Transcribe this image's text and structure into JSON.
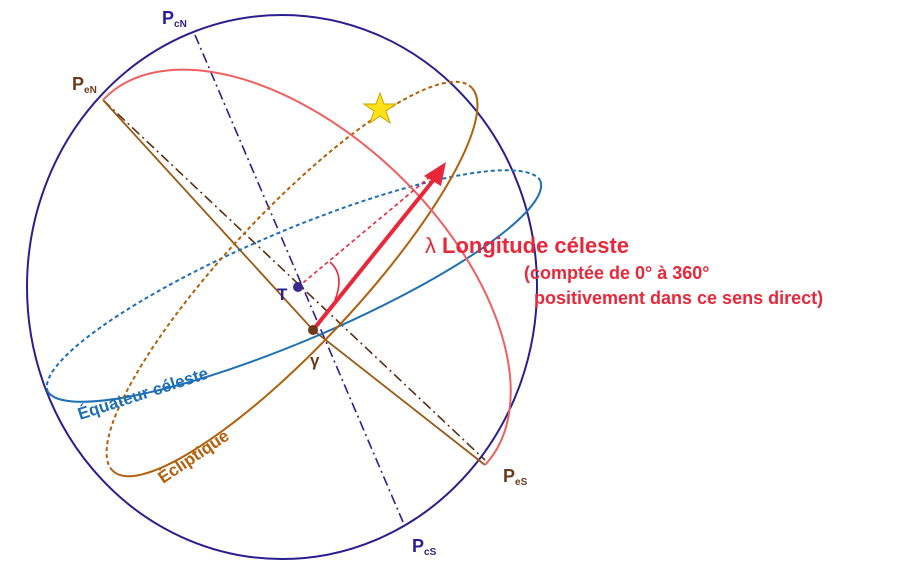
{
  "labels": {
    "pole_celestial_north": {
      "main": "P",
      "sub": "cN"
    },
    "pole_ecliptic_north": {
      "main": "P",
      "sub": "eN"
    },
    "pole_ecliptic_south": {
      "main": "P",
      "sub": "eS"
    },
    "pole_celestial_south": {
      "main": "P",
      "sub": "cS"
    },
    "earth": "T",
    "vernal_point": "γ",
    "longitude": {
      "symbol": "λ",
      "title": "Longitude céleste",
      "lines": [
        "(comptée de 0° à 360°",
        "positivement dans ce sens direct)"
      ]
    },
    "equator": "Équateur céleste",
    "ecliptic": "Écliptique"
  }
}
